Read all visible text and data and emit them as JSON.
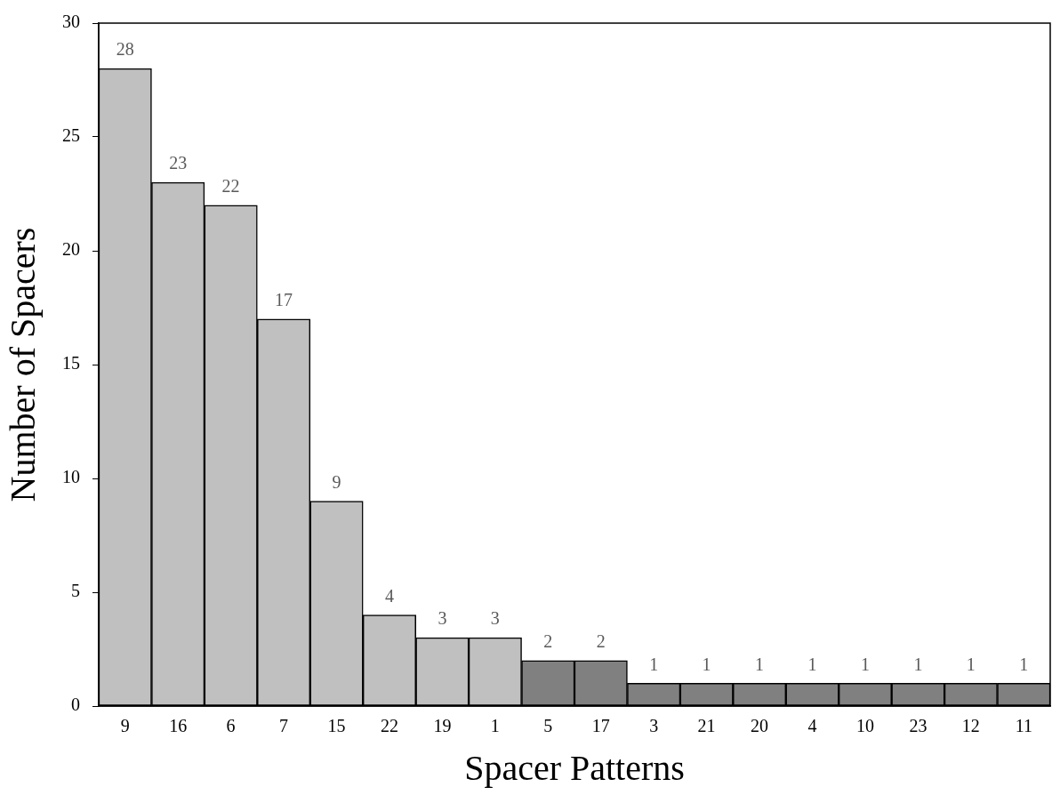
{
  "chart_data": {
    "type": "bar",
    "xlabel": "Spacer Patterns",
    "ylabel": "Number of Spacers",
    "categories": [
      "9",
      "16",
      "6",
      "7",
      "15",
      "22",
      "19",
      "1",
      "5",
      "17",
      "3",
      "21",
      "20",
      "4",
      "10",
      "23",
      "12",
      "11"
    ],
    "values": [
      28,
      23,
      22,
      17,
      9,
      4,
      3,
      3,
      2,
      2,
      1,
      1,
      1,
      1,
      1,
      1,
      1,
      1
    ],
    "colors": [
      "#c0c0c0",
      "#c0c0c0",
      "#c0c0c0",
      "#c0c0c0",
      "#c0c0c0",
      "#c0c0c0",
      "#c0c0c0",
      "#c0c0c0",
      "#808080",
      "#808080",
      "#808080",
      "#808080",
      "#808080",
      "#808080",
      "#808080",
      "#808080",
      "#808080",
      "#808080"
    ],
    "ylim": [
      0,
      30
    ],
    "yticks": [
      0,
      5,
      10,
      15,
      20,
      25,
      30
    ],
    "data_labels": true,
    "grid": false,
    "legend": false
  }
}
